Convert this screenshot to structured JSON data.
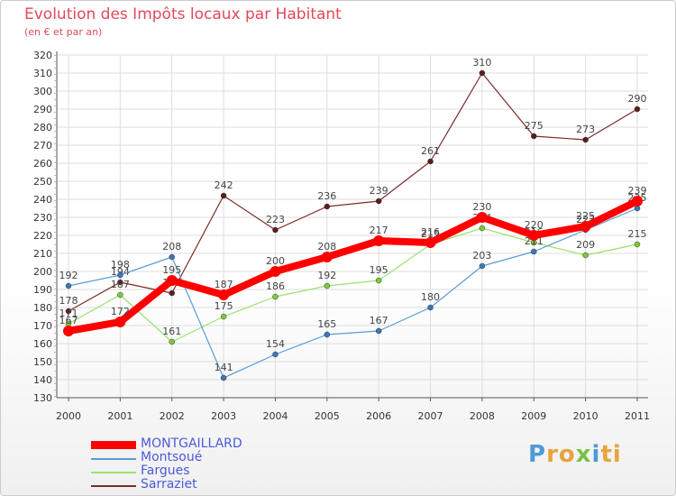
{
  "header": {
    "title": "Evolution des Impôts locaux par Habitant",
    "subtitle": "(en € et par an)"
  },
  "colors": {
    "title": "#e04a5a",
    "grid": "#dddddd",
    "axis": "#555555",
    "legend_text": "#4a5bd9"
  },
  "chart_data": {
    "type": "line",
    "title": "Evolution des Impôts locaux par Habitant",
    "subtitle": "(en € et par an)",
    "xlabel": "",
    "ylabel": "",
    "x": [
      "2000",
      "2001",
      "2002",
      "2003",
      "2004",
      "2005",
      "2006",
      "2007",
      "2008",
      "2009",
      "2010",
      "2011"
    ],
    "ylim": [
      130,
      320
    ],
    "yticks": [
      130,
      140,
      150,
      160,
      170,
      180,
      190,
      200,
      210,
      220,
      230,
      240,
      250,
      260,
      270,
      280,
      290,
      300,
      310,
      320
    ],
    "grid": true,
    "legend_position": "bottom-left",
    "series": [
      {
        "name": "MONTGAILLARD",
        "color": "#ff0000",
        "values": [
          167,
          172,
          195,
          187,
          200,
          208,
          217,
          216,
          230,
          220,
          225,
          239
        ]
      },
      {
        "name": "Montsoué",
        "color": "#5b9bd5",
        "values": [
          192,
          198,
          208,
          141,
          154,
          165,
          167,
          180,
          203,
          211,
          223,
          235
        ]
      },
      {
        "name": "Fargues",
        "color": "#99e26b",
        "values": [
          171,
          187,
          161,
          175,
          186,
          192,
          195,
          215,
          224,
          216,
          209,
          215
        ]
      },
      {
        "name": "Sarraziet",
        "color": "#7b2a2a",
        "values": [
          178,
          194,
          188,
          242,
          223,
          236,
          239,
          261,
          310,
          275,
          273,
          290
        ]
      }
    ]
  },
  "legend": {
    "items": [
      "MONTGAILLARD",
      "Montsoué",
      "Fargues",
      "Sarraziet"
    ]
  },
  "logo": {
    "letters": [
      "P",
      "r",
      "o",
      "x",
      "i",
      "t",
      "i"
    ],
    "colors": [
      "#4f9ad6",
      "#e8a33d",
      "#e8a33d",
      "#7ac143",
      "#4f9ad6",
      "#e8a33d",
      "#e8a33d"
    ]
  }
}
